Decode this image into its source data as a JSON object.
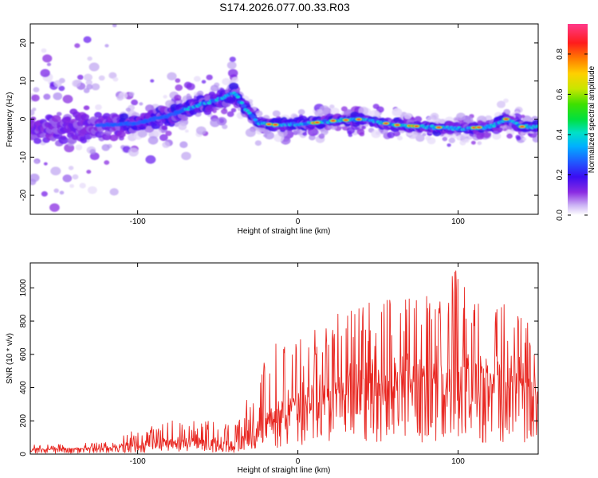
{
  "title": "S174.2026.077.00.33.R03",
  "chart_data": [
    {
      "type": "heatmap",
      "xlabel": "Height of straight line (km)",
      "ylabel": "Frequency (Hz)",
      "xlim": [
        -167,
        150
      ],
      "ylim": [
        -25,
        25
      ],
      "x_ticks": [
        -100,
        0,
        100
      ],
      "y_ticks": [
        -20,
        -10,
        0,
        10,
        20
      ],
      "colorbar": {
        "label": "Normalized spectral amplitude",
        "range": [
          0,
          0.95
        ],
        "ticks": [
          0.0,
          0.2,
          0.4,
          0.6,
          0.8
        ]
      },
      "ridge": {
        "x": [
          -167,
          -140,
          -120,
          -100,
          -80,
          -60,
          -50,
          -40,
          -33,
          -25,
          -15,
          0,
          20,
          40,
          60,
          80,
          100,
          120,
          130,
          140,
          150
        ],
        "freq_hz": [
          -3,
          -2,
          -1.5,
          -1,
          1,
          4,
          5,
          7,
          3,
          -1,
          -1.5,
          -1.5,
          -0.5,
          0,
          -1.5,
          -2,
          -2.5,
          -2,
          0,
          -2,
          -2
        ]
      }
    },
    {
      "type": "line",
      "xlabel": "Height of straight line (km)",
      "ylabel": "SNR (10 * v/v)",
      "xlim": [
        -167,
        150
      ],
      "ylim": [
        0,
        1150
      ],
      "x_ticks": [
        -100,
        0,
        100
      ],
      "y_ticks": [
        0,
        200,
        400,
        600,
        800,
        1000
      ],
      "color": "#e8251f",
      "envelope": {
        "x": [
          -167,
          -120,
          -100,
          -80,
          -60,
          -40,
          -35,
          -20,
          0,
          20,
          40,
          60,
          80,
          100,
          120,
          140,
          150
        ],
        "mean": [
          30,
          35,
          60,
          70,
          80,
          60,
          70,
          220,
          300,
          380,
          420,
          450,
          470,
          480,
          470,
          450,
          400
        ],
        "peak": [
          55,
          70,
          150,
          200,
          210,
          170,
          250,
          650,
          700,
          840,
          900,
          980,
          950,
          1150,
          960,
          820,
          760
        ]
      }
    }
  ]
}
